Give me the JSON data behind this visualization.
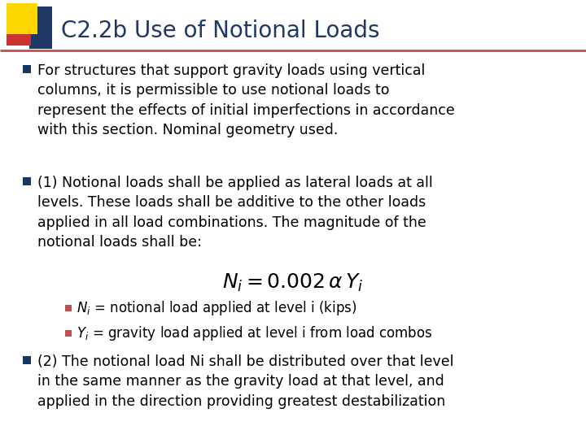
{
  "title": "C2.2b Use of Notional Loads",
  "title_color": "#1F3864",
  "title_fontsize": 20,
  "background_color": "#FFFFFF",
  "bullet_color_main": "#17375E",
  "bullet_color_sub": "#C0504D",
  "body_fontsize": 12.5,
  "sub_fontsize": 12.0,
  "eq_fontsize": 18,
  "bullet1": "For structures that support gravity loads using vertical\ncolumns, it is permissible to use notional loads to\nrepresent the effects of initial imperfections in accordance\nwith this section. Nominal geometry used.",
  "bullet2": "(1) Notional loads shall be applied as lateral loads at all\nlevels. These loads shall be additive to the other loads\napplied in all load combinations. The magnitude of the\nnotional loads shall be:",
  "equation": "$N_i = 0.002\\,\\alpha\\,Y_i$",
  "sub_bullet1": "$N_i$ = notional load applied at level i (kips)",
  "sub_bullet2": "$Y_i$ = gravity load applied at level i from load combos",
  "bullet3": "(2) The notional load Ni shall be distributed over that level\nin the same manner as the gravity load at that level, and\napplied in the direction providing greatest destabilization",
  "separator_color": "#C0504D",
  "logo_yellow": "#FFD700",
  "logo_red": "#CC3333",
  "logo_blue": "#1F3864"
}
